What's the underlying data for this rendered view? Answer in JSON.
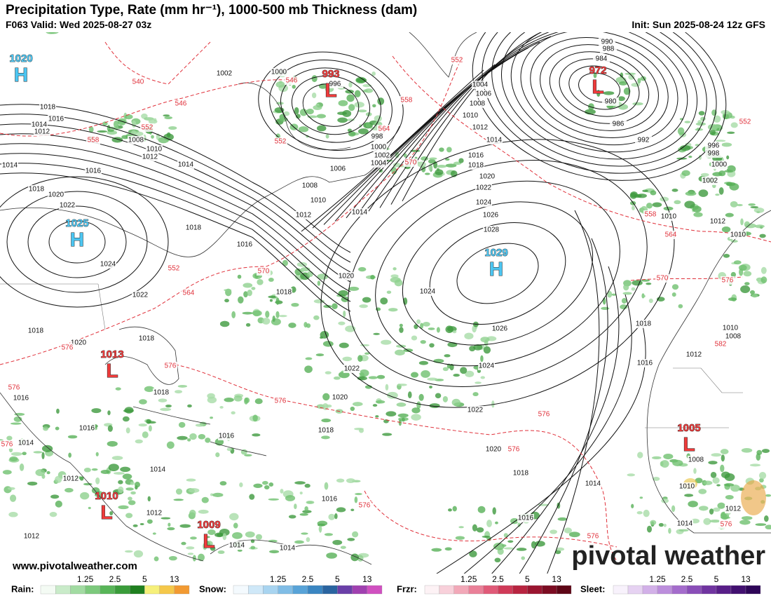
{
  "header": {
    "title": "Precipitation Type, Rate (mm hr⁻¹), 1000-500 mb Thickness (dam)",
    "valid": "F063 Valid: Wed 2025-08-27 03z",
    "init": "Init: Sun 2025-08-24 12z GFS"
  },
  "centers": [
    {
      "letter": "H",
      "value": "1020"
    },
    {
      "letter": "H",
      "value": "1025"
    },
    {
      "letter": "L",
      "value": "993"
    },
    {
      "letter": "L",
      "value": "972"
    },
    {
      "letter": "H",
      "value": "1029"
    },
    {
      "letter": "L",
      "value": "1013"
    },
    {
      "letter": "L",
      "value": "1010"
    },
    {
      "letter": "L",
      "value": "1009"
    },
    {
      "letter": "L",
      "value": "1005"
    }
  ],
  "isobar_labels": [
    "1002",
    "1000",
    "996",
    "1004",
    "1006",
    "1008",
    "1010",
    "1012",
    "1014",
    "1016",
    "1018",
    "1020",
    "1022",
    "1024",
    "1026",
    "1028",
    "990",
    "988",
    "984",
    "980",
    "986",
    "992",
    "996",
    "998",
    "1000",
    "1002",
    "1010",
    "1012",
    "1010",
    "1018",
    "1016",
    "1014",
    "1012",
    "1008",
    "1010",
    "1012",
    "1014",
    "1016",
    "1014",
    "1018",
    "1020",
    "1022",
    "1018",
    "1016",
    "1024",
    "1022",
    "1018",
    "1020",
    "1018",
    "1018",
    "1016",
    "1016",
    "1014",
    "1012",
    "1014",
    "1016",
    "998",
    "1000",
    "1002",
    "1004",
    "1006",
    "1008",
    "1010",
    "1012",
    "1014",
    "1020",
    "1018",
    "1024",
    "1026",
    "1024",
    "1022",
    "1020",
    "1018",
    "1022",
    "1020",
    "1018",
    "1016",
    "1016",
    "1014",
    "1012",
    "1012",
    "1014",
    "1014",
    "1018",
    "1016",
    "1012",
    "1010",
    "1008",
    "1008",
    "1010",
    "1012",
    "1014"
  ],
  "thickness_labels": [
    "540",
    "546",
    "552",
    "558",
    "546",
    "552",
    "552",
    "558",
    "564",
    "570",
    "552",
    "558",
    "564",
    "570",
    "576",
    "552",
    "564",
    "570",
    "576",
    "576",
    "576",
    "576",
    "576",
    "576",
    "576",
    "576",
    "582",
    "576",
    "576"
  ],
  "legend": [
    {
      "name": "Rain:",
      "ticks": [
        "1.25",
        "2.5",
        "5",
        "13"
      ]
    },
    {
      "name": "Snow:",
      "ticks": [
        "1.25",
        "2.5",
        "5",
        "13"
      ]
    },
    {
      "name": "Frzr:",
      "ticks": [
        "1.25",
        "2.5",
        "5",
        "13"
      ]
    },
    {
      "name": "Sleet:",
      "ticks": [
        "1.25",
        "2.5",
        "5",
        "13"
      ]
    }
  ],
  "footer": {
    "url": "www.pivotalweather.com",
    "brand": "pivotal weather"
  }
}
